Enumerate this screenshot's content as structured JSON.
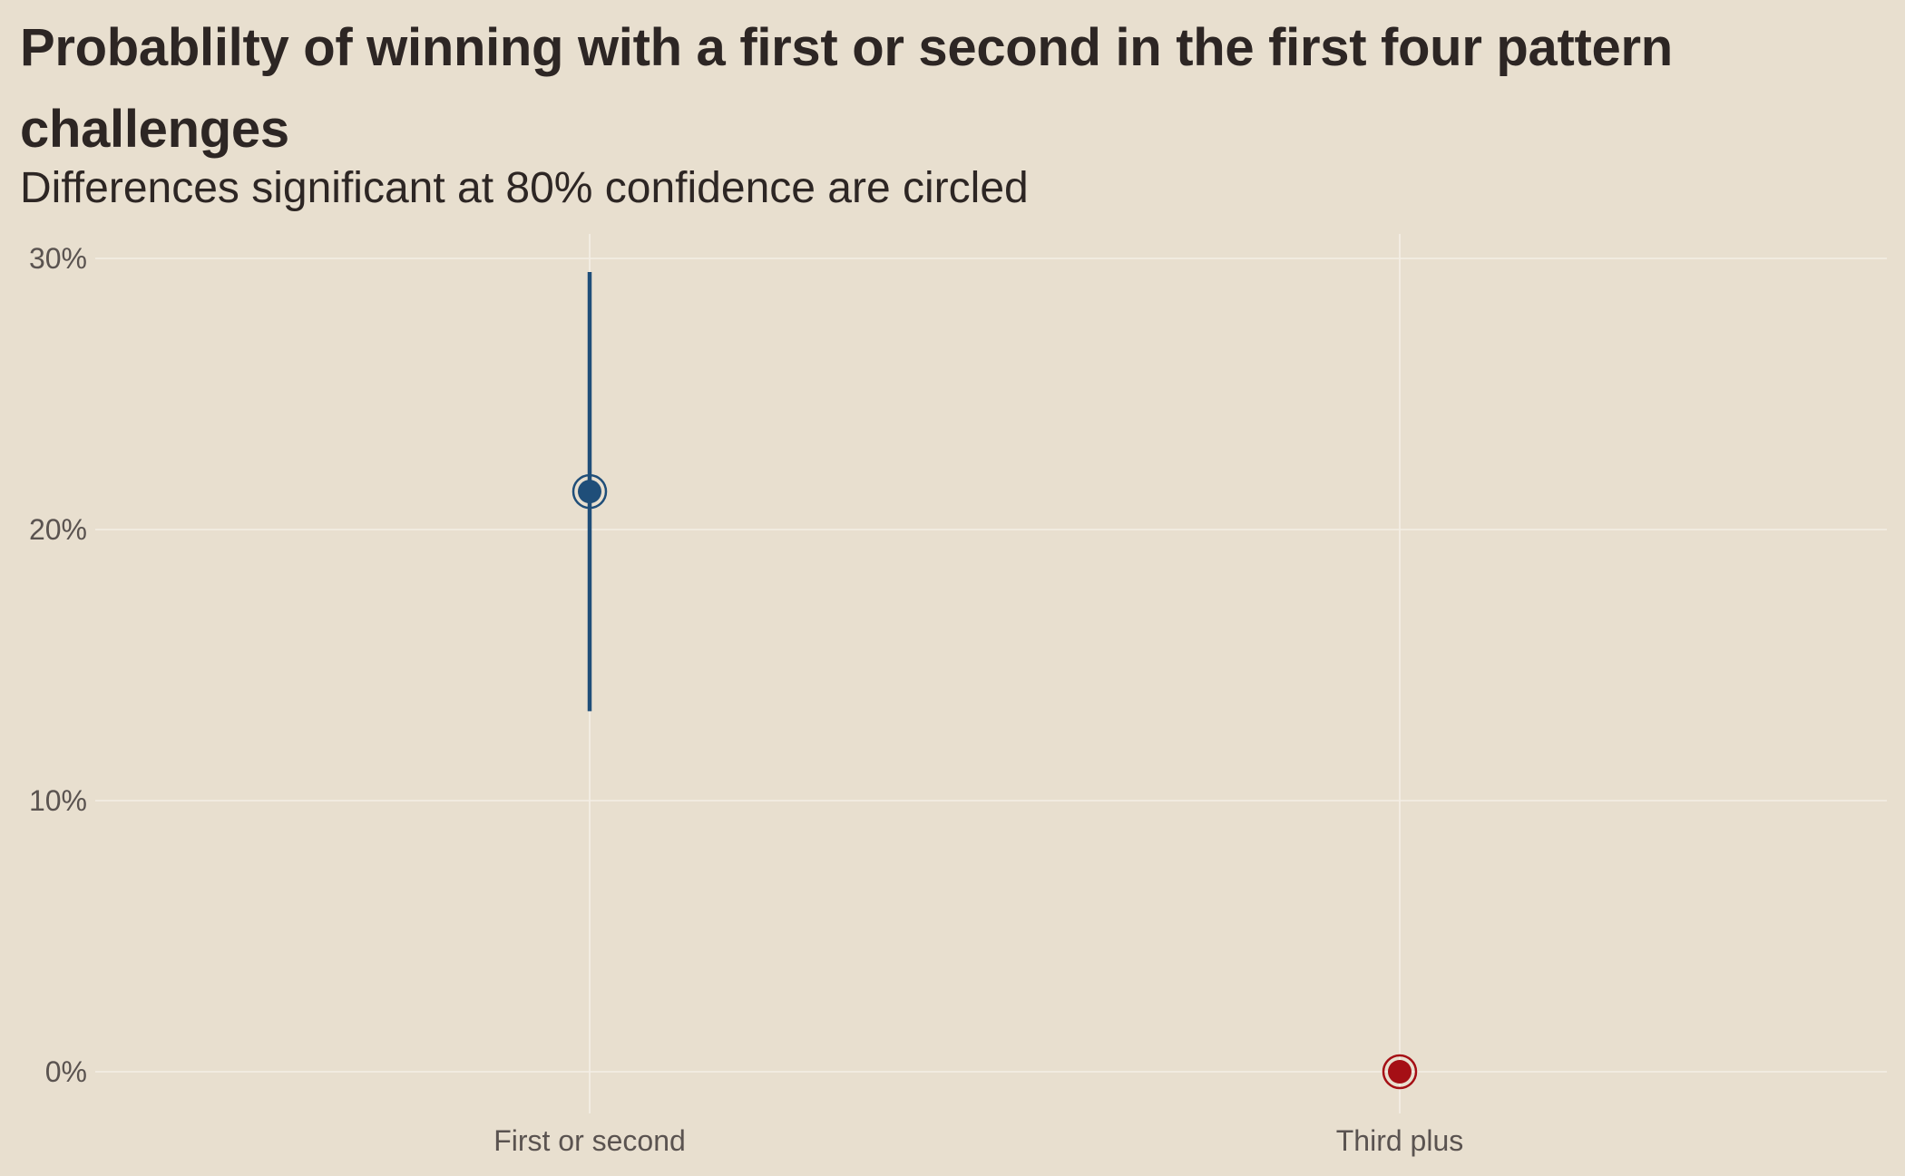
{
  "chart_data": {
    "type": "scatter",
    "title": "Probablilty of winning with a first or second in the first four pattern challenges",
    "subtitle": "Differences significant at 80% confidence are circled",
    "xlabel": "",
    "ylabel": "",
    "categories": [
      "First or second",
      "Third plus"
    ],
    "ylim": [
      -0.015,
      0.31
    ],
    "y_ticks": [
      0,
      0.1,
      0.2,
      0.3
    ],
    "y_tick_labels": [
      "0%",
      "10%",
      "20%",
      "30%"
    ],
    "grid": true,
    "points": [
      {
        "category": "First or second",
        "estimate": 0.214,
        "lower": 0.133,
        "upper": 0.295,
        "significant": true,
        "color": "#1f4e79"
      },
      {
        "category": "Third plus",
        "estimate": 0.0,
        "lower": 0.0,
        "upper": 0.0,
        "significant": true,
        "color": "#a50f15"
      }
    ]
  }
}
